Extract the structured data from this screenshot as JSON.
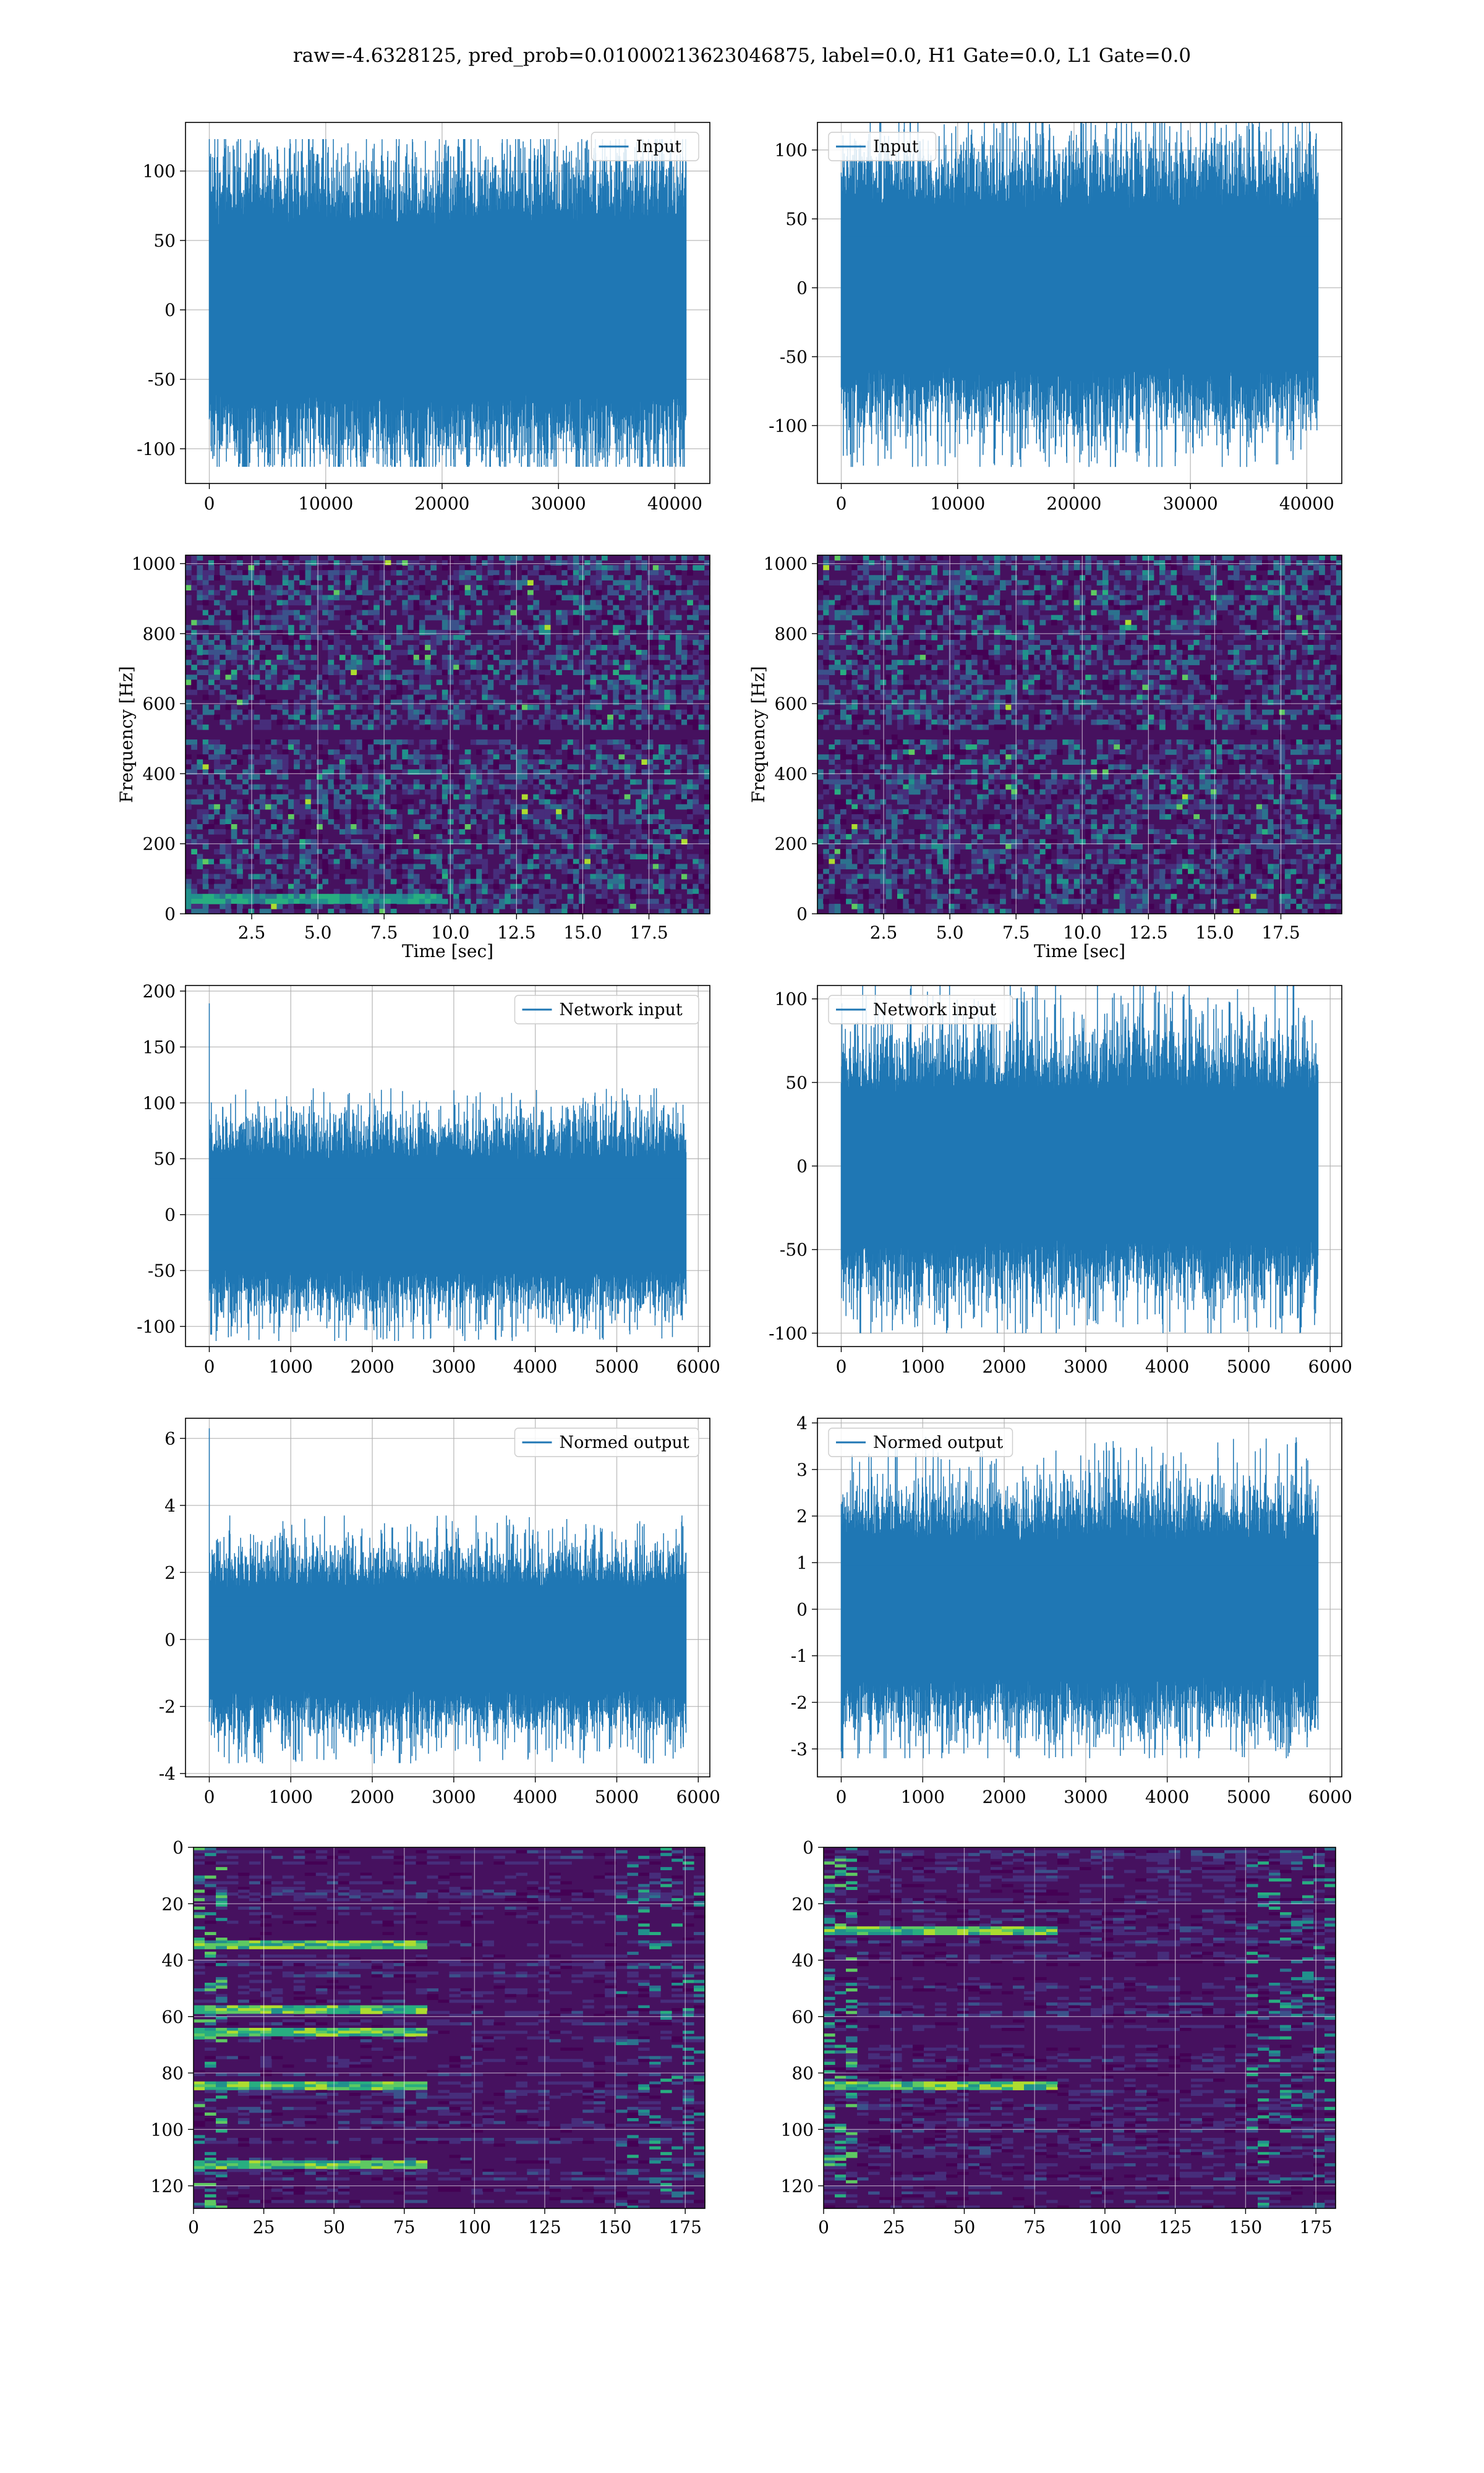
{
  "title": "raw=-4.6328125, pred_prob=0.01000213623046875, label=0.0, H1 Gate=0.0, L1 Gate=0.0",
  "colors": {
    "series": "#1f77b4",
    "grid": "#b0b0b0",
    "spec_bg": "#46115f",
    "spec_palette": [
      "#440154",
      "#472d7b",
      "#3b528b",
      "#2c728e",
      "#21918c",
      "#28ae80",
      "#5ec962",
      "#addc30",
      "#fde725"
    ]
  },
  "chart_data": [
    {
      "type": "line",
      "panel": "row1-left",
      "legend": "Input",
      "legend_loc": "top-right",
      "x_range": [
        0,
        40960
      ],
      "xlim": [
        -2048,
        43008
      ],
      "ylim": [
        -125,
        135
      ],
      "xticks": [
        0,
        10000,
        20000,
        30000,
        40000
      ],
      "yticks": [
        -100,
        -50,
        0,
        50,
        100
      ],
      "envelope": {
        "typical": 72,
        "max_up": 123,
        "max_down": -113
      },
      "grid": true
    },
    {
      "type": "line",
      "panel": "row1-right",
      "legend": "Input",
      "legend_loc": "top-left",
      "x_range": [
        0,
        40960
      ],
      "xlim": [
        -2048,
        43008
      ],
      "ylim": [
        -142,
        120
      ],
      "xticks": [
        0,
        10000,
        20000,
        30000,
        40000
      ],
      "yticks": [
        -100,
        -50,
        0,
        50,
        100
      ],
      "envelope": {
        "typical": 68,
        "max_up": 122,
        "max_down": -130
      },
      "grid": true
    },
    {
      "type": "heatmap",
      "panel": "row2-left",
      "kind": "spectrogram",
      "xlabel": "Time [sec]",
      "ylabel": "Frequency [Hz]",
      "xlim": [
        0,
        19.8
      ],
      "ylim": [
        0,
        1024
      ],
      "xticks": [
        2.5,
        5.0,
        7.5,
        10.0,
        12.5,
        15.0,
        17.5
      ],
      "xticklabels": [
        "2.5",
        "5.0",
        "7.5",
        "10.0",
        "12.5",
        "15.0",
        "17.5"
      ],
      "yticks": [
        0,
        200,
        400,
        600,
        800,
        1000
      ],
      "dark_band_hz": 512,
      "low_freq_band_hz": 45,
      "grid": true
    },
    {
      "type": "heatmap",
      "panel": "row2-right",
      "kind": "spectrogram",
      "xlabel": "Time [sec]",
      "ylabel": "Frequency [Hz]",
      "xlim": [
        0,
        19.8
      ],
      "ylim": [
        0,
        1024
      ],
      "xticks": [
        2.5,
        5.0,
        7.5,
        10.0,
        12.5,
        15.0,
        17.5
      ],
      "xticklabels": [
        "2.5",
        "5.0",
        "7.5",
        "10.0",
        "12.5",
        "15.0",
        "17.5"
      ],
      "yticks": [
        0,
        200,
        400,
        600,
        800,
        1000
      ],
      "dark_band_hz": 512,
      "grid": true
    },
    {
      "type": "line",
      "panel": "row3-left",
      "legend": "Network input",
      "legend_loc": "top-right",
      "x_range": [
        0,
        5850
      ],
      "xlim": [
        -292,
        6142
      ],
      "ylim": [
        -118,
        205
      ],
      "xticks": [
        0,
        1000,
        2000,
        3000,
        4000,
        5000,
        6000
      ],
      "yticks": [
        -100,
        -50,
        0,
        50,
        100,
        150,
        200
      ],
      "envelope": {
        "typical": 58,
        "max_up": 113,
        "max_down": -113,
        "initial_spike": 189
      },
      "grid": true
    },
    {
      "type": "line",
      "panel": "row3-right",
      "legend": "Network input",
      "legend_loc": "top-left",
      "x_range": [
        0,
        5850
      ],
      "xlim": [
        -292,
        6142
      ],
      "ylim": [
        -108,
        108
      ],
      "xticks": [
        0,
        1000,
        2000,
        3000,
        4000,
        5000,
        6000
      ],
      "yticks": [
        -100,
        -50,
        0,
        50,
        100
      ],
      "envelope": {
        "typical": 52,
        "max_up": 113,
        "max_down": -100
      },
      "grid": true
    },
    {
      "type": "line",
      "panel": "row4-left",
      "legend": "Normed output",
      "legend_loc": "top-right",
      "x_range": [
        0,
        5850
      ],
      "xlim": [
        -292,
        6142
      ],
      "ylim": [
        -4.1,
        6.6
      ],
      "xticks": [
        0,
        1000,
        2000,
        3000,
        4000,
        5000,
        6000
      ],
      "yticks": [
        -4,
        -2,
        0,
        2,
        4,
        6
      ],
      "envelope": {
        "typical": 1.8,
        "max_up": 3.7,
        "max_down": -3.7,
        "initial_spike": 6.3
      },
      "grid": true
    },
    {
      "type": "line",
      "panel": "row4-right",
      "legend": "Normed output",
      "legend_loc": "top-left",
      "x_range": [
        0,
        5850
      ],
      "xlim": [
        -292,
        6142
      ],
      "ylim": [
        -3.6,
        4.1
      ],
      "xticks": [
        0,
        1000,
        2000,
        3000,
        4000,
        5000,
        6000
      ],
      "yticks": [
        -3,
        -2,
        -1,
        0,
        1,
        2,
        3,
        4
      ],
      "envelope": {
        "typical": 1.7,
        "max_up": 3.7,
        "max_down": -3.2
      },
      "grid": true
    },
    {
      "type": "heatmap",
      "panel": "row5-left",
      "kind": "feature-map",
      "xlim": [
        0,
        182
      ],
      "ylim": [
        0,
        128
      ],
      "y_inverted": true,
      "xticks": [
        0,
        25,
        50,
        75,
        100,
        125,
        150,
        175
      ],
      "yticks": [
        0,
        20,
        40,
        60,
        80,
        100,
        120
      ],
      "bright_rows": [
        34,
        57,
        65,
        84,
        112
      ],
      "grid": true
    },
    {
      "type": "heatmap",
      "panel": "row5-right",
      "kind": "feature-map",
      "xlim": [
        0,
        182
      ],
      "ylim": [
        0,
        128
      ],
      "y_inverted": true,
      "xticks": [
        0,
        25,
        50,
        75,
        100,
        125,
        150,
        175
      ],
      "yticks": [
        0,
        20,
        40,
        60,
        80,
        100,
        120
      ],
      "bright_rows": [
        29,
        84
      ],
      "grid": true
    }
  ]
}
